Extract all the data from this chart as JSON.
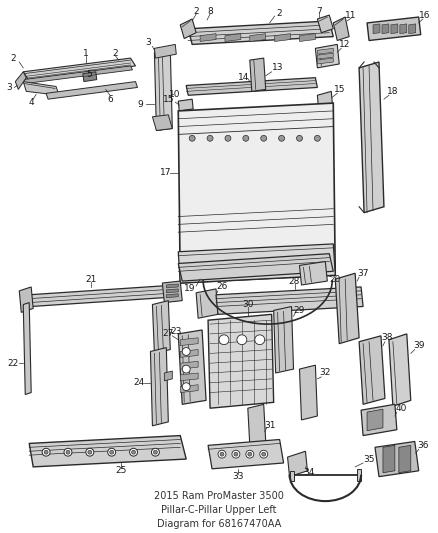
{
  "title": "2015 Ram ProMaster 3500",
  "subtitle": "Pillar-C-Pillar Upper Left",
  "part_number": "Diagram for 68167470AA",
  "bg_color": "#ffffff",
  "line_color": "#2a2a2a",
  "figsize": [
    4.38,
    5.33
  ],
  "dpi": 100,
  "label_fontsize": 6.5
}
